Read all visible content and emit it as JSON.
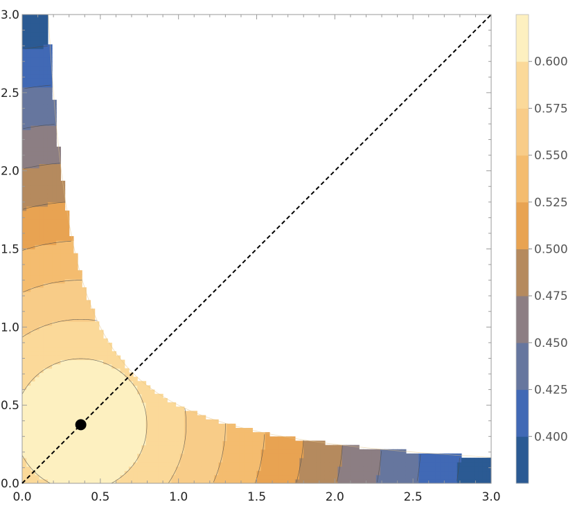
{
  "chart_data": {
    "type": "contour",
    "title": "",
    "xlabel": "",
    "ylabel": "",
    "xlim": [
      0,
      3
    ],
    "ylim": [
      0,
      3
    ],
    "x_ticks": [
      "0.0",
      "0.5",
      "1.0",
      "1.5",
      "2.0",
      "2.5",
      "3.0"
    ],
    "y_ticks": [
      "0.0",
      "0.5",
      "1.0",
      "1.5",
      "2.0",
      "2.5",
      "3.0"
    ],
    "feasible_region": "x*y <= 0.5",
    "maximum_point": {
      "x": 0.375,
      "y": 0.375
    },
    "contour_levels": [
      0.4,
      0.425,
      0.45,
      0.475,
      0.5,
      0.525,
      0.55,
      0.575,
      0.6
    ],
    "colorbar": {
      "min": 0.375,
      "max": 0.625,
      "tick_labels": [
        "0.400",
        "0.425",
        "0.450",
        "0.475",
        "0.500",
        "0.525",
        "0.550",
        "0.575",
        "0.600"
      ],
      "colors": [
        "#2b5a93",
        "#4169b5",
        "#66769e",
        "#8c7e83",
        "#b58a5e",
        "#e8a352",
        "#f4bc6f",
        "#f8cc88",
        "#fbd999",
        "#fdf0c0"
      ]
    },
    "reference_line": {
      "from": [
        0,
        0
      ],
      "to": [
        3,
        3
      ],
      "style": "dashed"
    },
    "grid": false,
    "legend": "none"
  }
}
